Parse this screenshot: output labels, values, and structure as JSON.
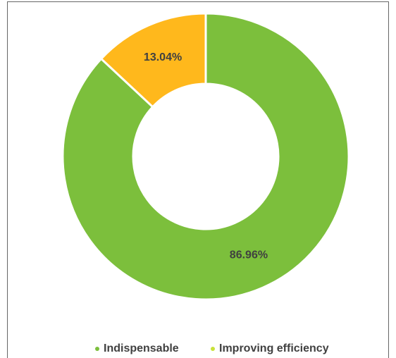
{
  "chart_data": {
    "type": "donut",
    "categories": [
      "Indispensable",
      "Improving efficiency"
    ],
    "values": [
      86.96,
      13.04
    ],
    "value_labels": [
      "86.96%",
      "13.04%"
    ],
    "colors": [
      "#7cbf3c",
      "#ffb81c"
    ],
    "legend_colors": [
      "#7cbf3c",
      "#c9e23a"
    ],
    "legend": "bottom"
  }
}
